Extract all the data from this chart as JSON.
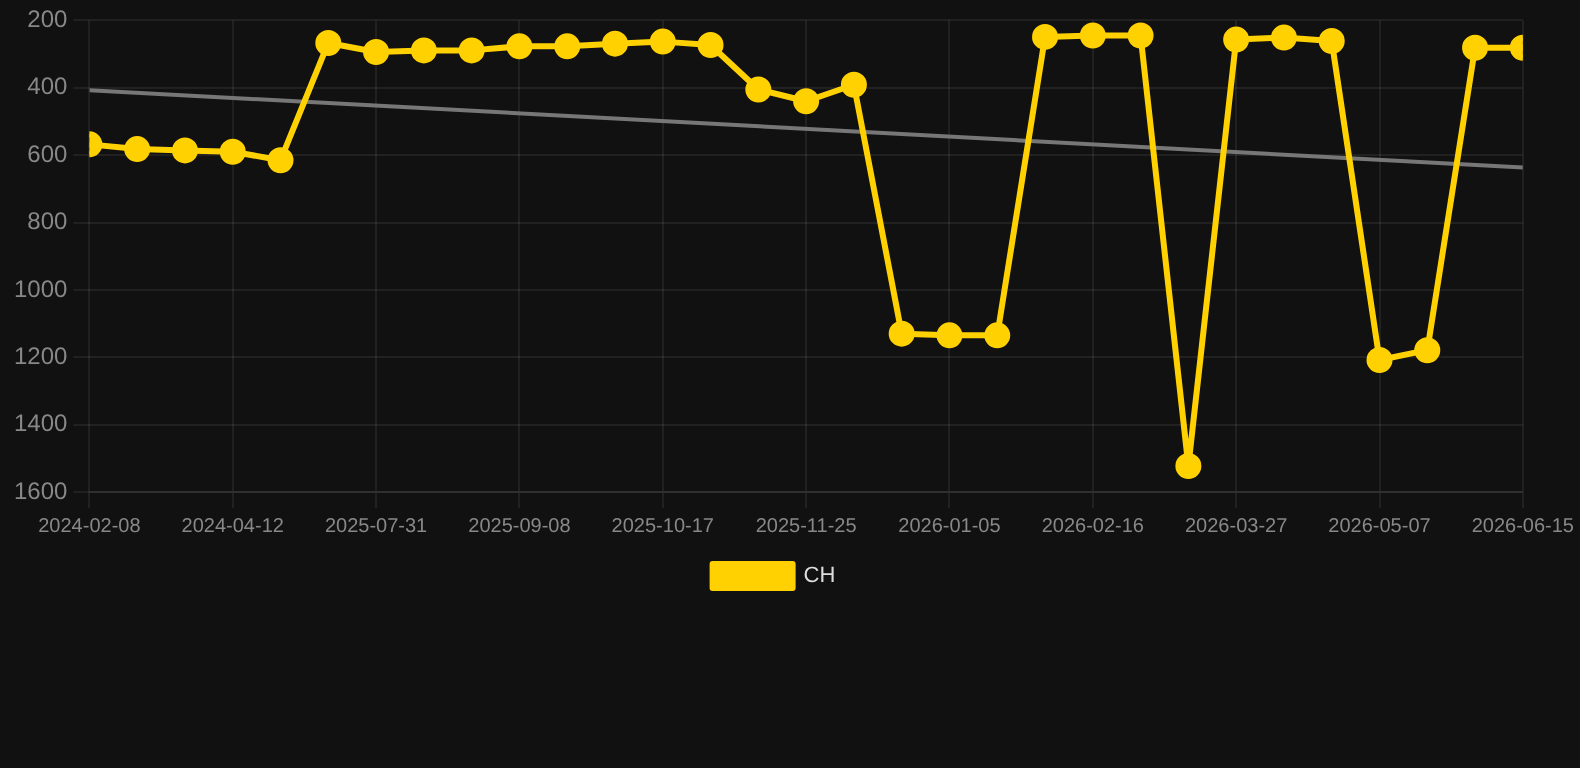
{
  "chart_data": {
    "type": "line",
    "categories": [
      "2024-02-08",
      null,
      null,
      "2024-04-12",
      null,
      null,
      "2025-07-31",
      null,
      null,
      "2025-09-08",
      null,
      null,
      "2025-10-17",
      null,
      null,
      "2025-11-25",
      null,
      null,
      "2026-01-05",
      null,
      null,
      "2026-02-16",
      null,
      null,
      "2026-03-27",
      null,
      null,
      "2026-05-07",
      null,
      null,
      "2026-06-15"
    ],
    "series": [
      {
        "name": "CH",
        "color": "#ffd100",
        "values": [
          568,
          582,
          586,
          590,
          615,
          267,
          294,
          289,
          289,
          277,
          277,
          269,
          263,
          273,
          405,
          440,
          391,
          1130,
          1135,
          1135,
          249,
          245,
          245,
          1523,
          257,
          251,
          261,
          1208,
          1179,
          281,
          281
        ]
      },
      {
        "type": "line",
        "color": "#777777",
        "marker": "none",
        "values": [
          407,
          null,
          null,
          null,
          null,
          null,
          null,
          null,
          null,
          null,
          null,
          null,
          null,
          null,
          null,
          null,
          null,
          null,
          null,
          null,
          null,
          null,
          null,
          null,
          null,
          null,
          null,
          null,
          null,
          null,
          637
        ]
      }
    ],
    "ylim": [
      1600,
      200
    ],
    "yticks": [
      200,
      400,
      600,
      800,
      1000,
      1200,
      1400,
      1600
    ],
    "grid": true,
    "legend": "bottom",
    "marker": "circle"
  }
}
